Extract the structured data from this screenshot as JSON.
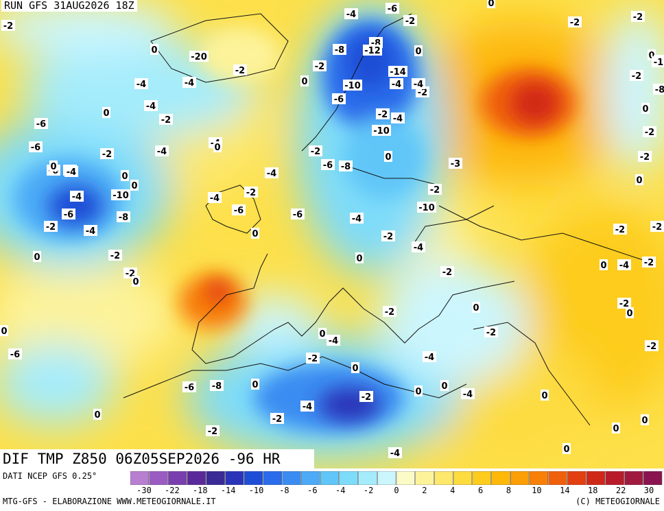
{
  "run_label": "RUN GFS 31AUG2026 18Z",
  "title": "DIF TMP Z850 06Z05SEP2026 -96 HR",
  "source": "DATI NCEP GFS 0.25°",
  "credit_left": "MTG-GFS - ELABORAZIONE WWW.METEOGIORNALE.IT",
  "credit_right": "(C) METEOGIORNALE",
  "legend": {
    "colors": [
      "#b87fd0",
      "#9a5cc2",
      "#7a3fae",
      "#5b2a9a",
      "#3a2a96",
      "#2a34b8",
      "#1f4ed6",
      "#2a6cea",
      "#3a8cf2",
      "#4caaf6",
      "#60c6f8",
      "#7edcfa",
      "#a4ecfc",
      "#ccf6fe",
      "#fbfbc8",
      "#fdf39a",
      "#fde86c",
      "#fddc40",
      "#fdcc1c",
      "#fdb80a",
      "#fc9e06",
      "#f88008",
      "#f0600c",
      "#e24010",
      "#d02818",
      "#b81c2a",
      "#a01a40",
      "#8a1450"
    ],
    "ticks": [
      "-30",
      "-22",
      "-18",
      "-14",
      "-10",
      "-8",
      "-6",
      "-4",
      "-2",
      "0",
      "2",
      "4",
      "6",
      "8",
      "10",
      "14",
      "18",
      "22",
      "30"
    ]
  },
  "contour_labels": [
    "-2",
    "-4",
    "-6",
    "-6",
    "-8",
    "-2",
    "-2",
    "-2",
    "0",
    "-8",
    "-12",
    "-14",
    "0",
    "0",
    "-2",
    "-8",
    "-1",
    "-2",
    "-20",
    "0",
    "-4",
    "-4",
    "0",
    "-2",
    "-2",
    "-4",
    "-2",
    "-4",
    "-10",
    "-8",
    "0",
    "-4",
    "-2",
    "-6",
    "0",
    "-2",
    "-4",
    "-6",
    "-2",
    "-10",
    "-6",
    "-4",
    "0",
    "-2",
    "-4",
    "-2",
    "-3",
    "0",
    "-2",
    "0",
    "-4",
    "0",
    "0",
    "-6",
    "-8",
    "-4",
    "0",
    "-2",
    "-4",
    "-10",
    "-2",
    "-4",
    "-6",
    "-10",
    "-6",
    "-8",
    "-2",
    "-4",
    "-6",
    "-4",
    "-2",
    "-2",
    "-2",
    "0",
    "-4",
    "-2",
    "0",
    "0",
    "-2",
    "0",
    "0",
    "-4",
    "-2",
    "-2",
    "0",
    "-2",
    "0",
    "-2",
    "0",
    "0",
    "-2",
    "-4",
    "-6",
    "-2",
    "0",
    "-4",
    "-2",
    "0",
    "0",
    "0",
    "-6",
    "-8",
    "-4",
    "-2",
    "-4",
    "0",
    "0",
    "0",
    "-2",
    "0",
    "-2",
    "-4",
    "0"
  ]
}
